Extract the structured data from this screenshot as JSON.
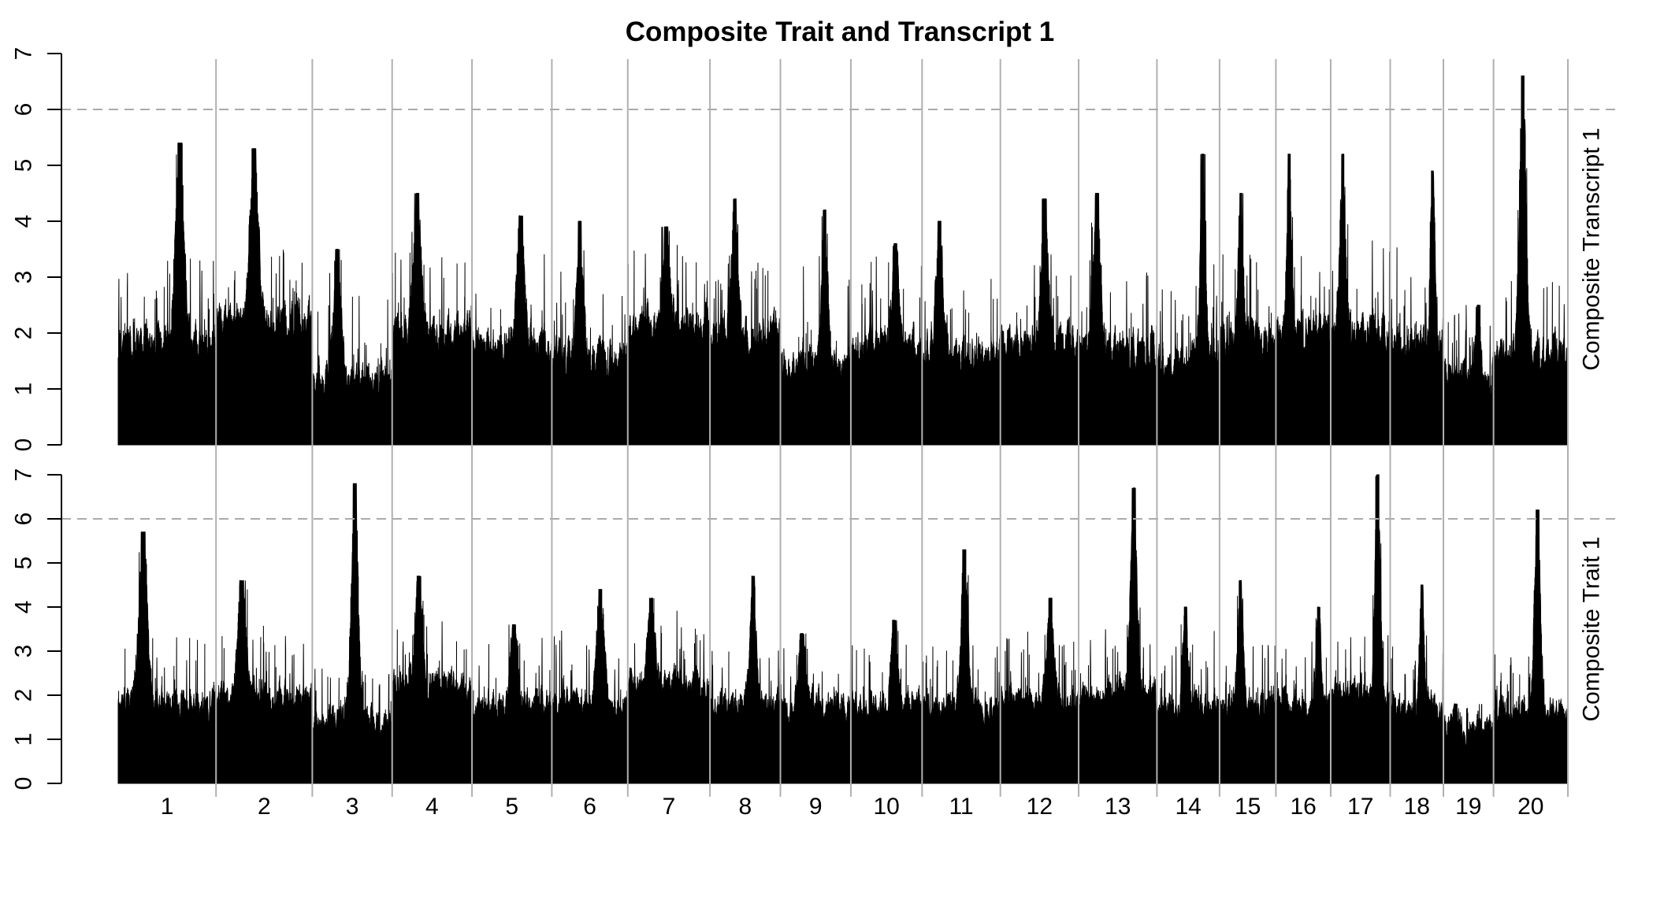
{
  "chart_data": {
    "type": "area",
    "title": "Composite Trait and Transcript 1",
    "xlabel": "",
    "chromosomes": [
      "1",
      "2",
      "3",
      "4",
      "5",
      "6",
      "7",
      "8",
      "9",
      "10",
      "11",
      "12",
      "13",
      "14",
      "15",
      "16",
      "17",
      "18",
      "19",
      "20"
    ],
    "chromosome_relative_lengths": [
      125,
      123,
      102,
      102,
      102,
      97,
      105,
      90,
      90,
      91,
      100,
      100,
      100,
      80,
      72,
      70,
      76,
      68,
      64,
      95
    ],
    "threshold": 6,
    "grid": true,
    "panels": [
      {
        "name": "Composite Transcript 1",
        "ylim": [
          0,
          7
        ],
        "yticks": [
          0,
          1,
          2,
          3,
          4,
          5,
          6,
          7
        ],
        "peak_per_chromosome": [
          5.4,
          5.3,
          3.5,
          4.5,
          4.1,
          4.0,
          3.9,
          4.4,
          4.2,
          3.6,
          4.0,
          4.4,
          4.5,
          5.2,
          4.5,
          5.2,
          5.2,
          4.9,
          2.5,
          6.6
        ],
        "baseline_per_chromosome": [
          1.6,
          2.0,
          1.0,
          1.8,
          1.6,
          1.3,
          1.9,
          1.8,
          1.2,
          1.5,
          1.4,
          1.6,
          1.5,
          1.3,
          1.7,
          1.8,
          1.8,
          1.6,
          1.0,
          1.4
        ]
      },
      {
        "name": "Composite Trait 1",
        "ylim": [
          0,
          7
        ],
        "yticks": [
          0,
          1,
          2,
          3,
          4,
          5,
          6,
          7
        ],
        "peak_per_chromosome": [
          5.7,
          4.6,
          6.8,
          4.7,
          3.6,
          4.4,
          4.2,
          4.7,
          3.4,
          3.7,
          5.3,
          4.2,
          6.7,
          4.0,
          4.6,
          4.0,
          7.2,
          4.5,
          1.8,
          6.2
        ],
        "baseline_per_chromosome": [
          1.6,
          1.7,
          1.2,
          2.0,
          1.6,
          1.6,
          2.0,
          1.6,
          1.5,
          1.6,
          1.5,
          1.7,
          1.8,
          1.5,
          1.6,
          1.6,
          1.8,
          1.5,
          1.0,
          1.4
        ]
      }
    ]
  }
}
